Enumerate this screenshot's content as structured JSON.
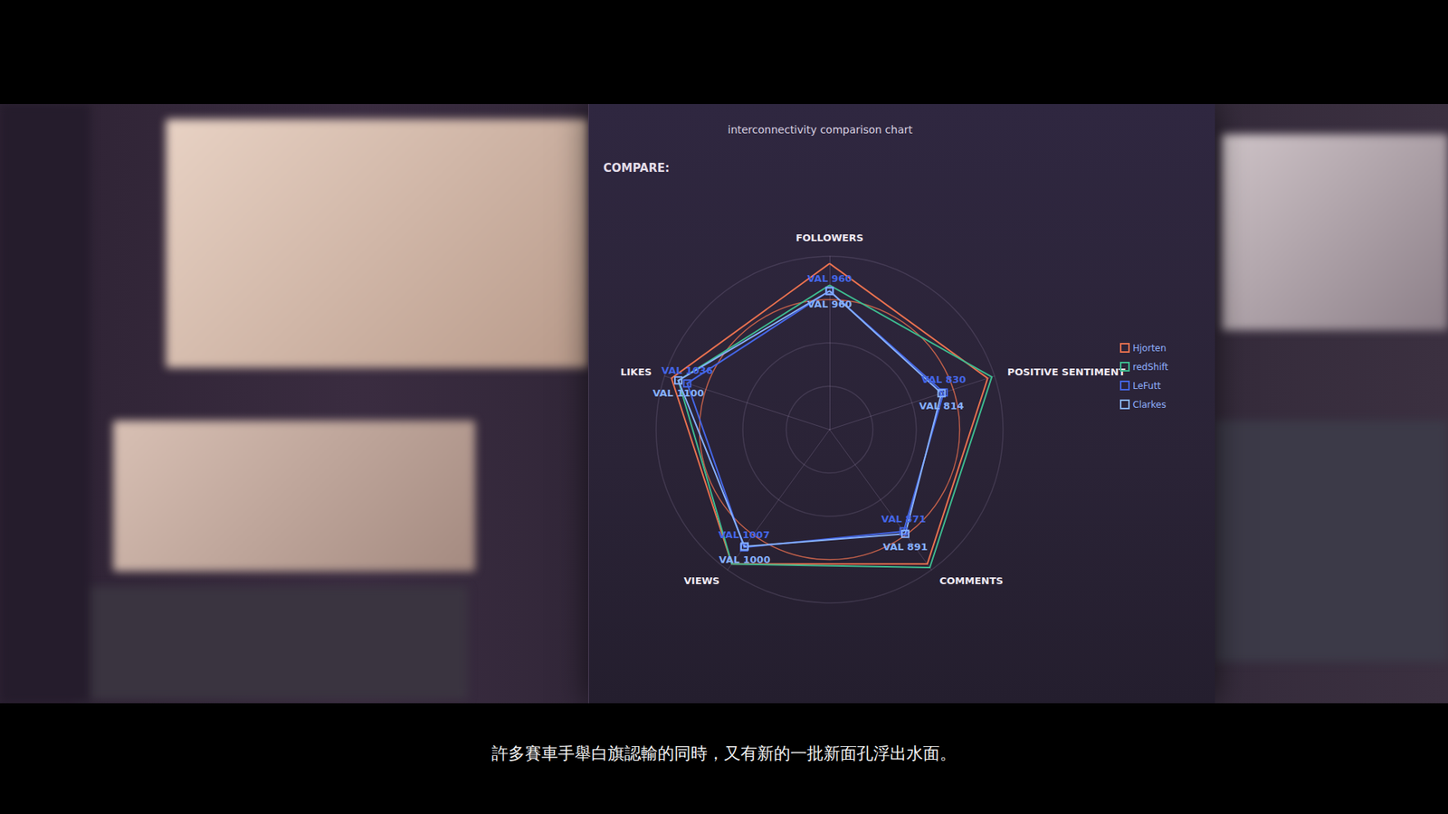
{
  "chart_data": {
    "type": "radar",
    "title": "interconnectivity comparison chart",
    "annotations": [
      "COMPARE:"
    ],
    "categories": [
      "FOLLOWERS",
      "LIKES",
      "VIEWS",
      "COMMENTS",
      "POSITIVE SENTIMENT"
    ],
    "ylim": [
      0,
      1200
    ],
    "yticks": [
      0,
      300,
      600,
      900,
      1200
    ],
    "tick_labels": false,
    "grid": true,
    "legend": "right",
    "data_labels": true,
    "series": [
      {
        "name": "Hjorten",
        "color": "#e9714f",
        "values": [
          1150,
          1150,
          1150,
          1150,
          1150
        ]
      },
      {
        "name": "redShift",
        "color": "#3dbb8f",
        "values": [
          1000,
          1100,
          1150,
          1180,
          1180
        ]
      },
      {
        "name": "LeFutt",
        "color": "#4466e6",
        "values": [
          960,
          1036,
          1007,
          871,
          830
        ],
        "value_labels": [
          "VAL 960",
          "VAL 1036",
          "VAL 1007",
          "VAL 871",
          "VAL 830"
        ]
      },
      {
        "name": "Clarkes",
        "color": "#86b0ff",
        "values": [
          960,
          1100,
          1000,
          891,
          814
        ],
        "value_labels": [
          "VAL 960",
          "VAL 1100",
          "VAL 1000",
          "VAL 891",
          "VAL 814"
        ]
      }
    ]
  },
  "caption": "許多賽車手舉白旗認輸的同時，又有新的一批新面孔浮出水面。"
}
